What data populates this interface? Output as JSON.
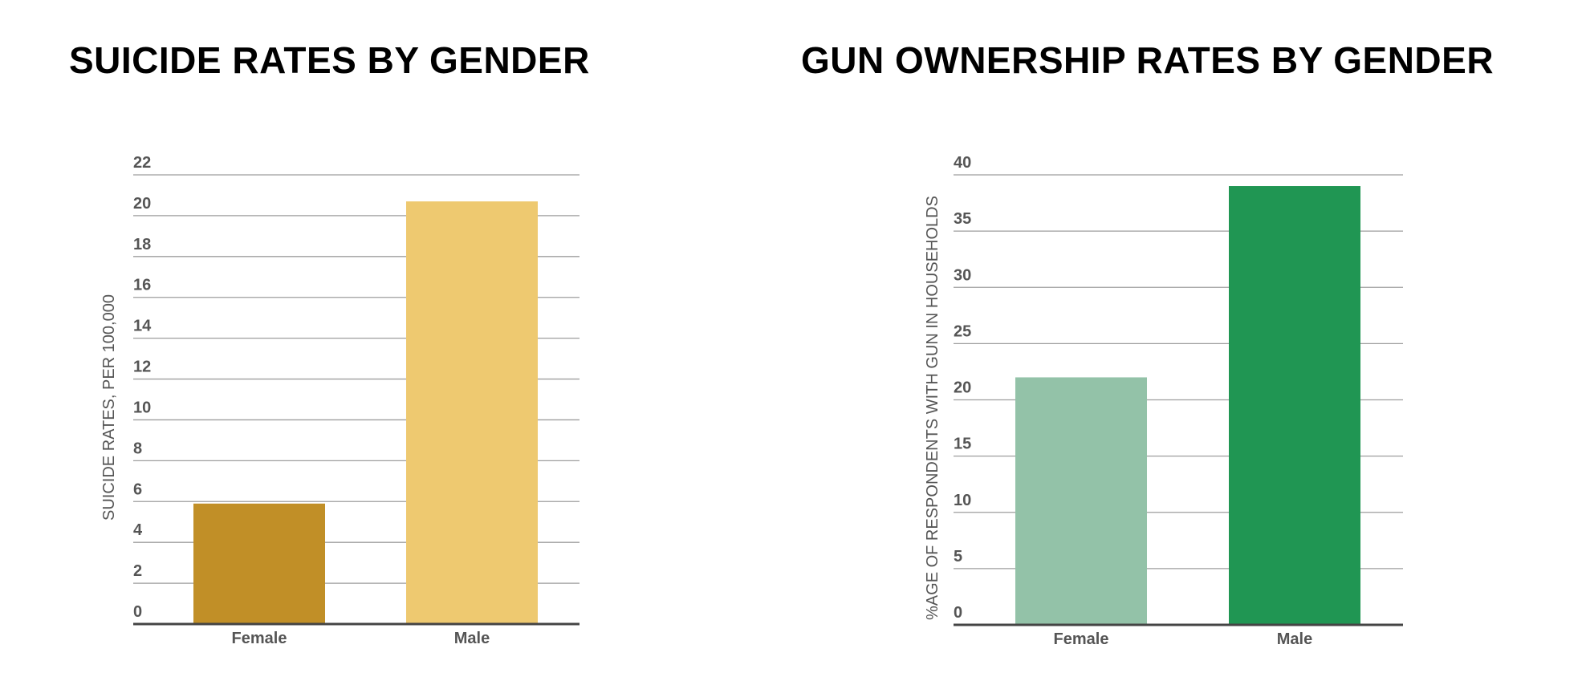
{
  "chart_data": [
    {
      "type": "bar",
      "title": "SUICIDE RATES BY GENDER",
      "xlabel": "",
      "ylabel": "SUICIDE RATES, PER 100,000",
      "categories": [
        "Female",
        "Male"
      ],
      "values": [
        5.9,
        20.7
      ],
      "ylim": [
        0,
        22
      ],
      "yticks": [
        0,
        2,
        4,
        6,
        8,
        10,
        12,
        14,
        16,
        18,
        20,
        22
      ],
      "colors": [
        "#C18F27",
        "#EEC970"
      ],
      "grid": true
    },
    {
      "type": "bar",
      "title": "GUN OWNERSHIP RATES BY GENDER",
      "xlabel": "",
      "ylabel": "%AGE OF RESPONDENTS WITH GUN IN HOUSEHOLDS",
      "categories": [
        "Female",
        "Male"
      ],
      "values": [
        22,
        39
      ],
      "ylim": [
        0,
        40
      ],
      "yticks": [
        0,
        5,
        10,
        15,
        20,
        25,
        30,
        35,
        40
      ],
      "colors": [
        "#93C2A8",
        "#209653"
      ],
      "grid": true
    }
  ]
}
